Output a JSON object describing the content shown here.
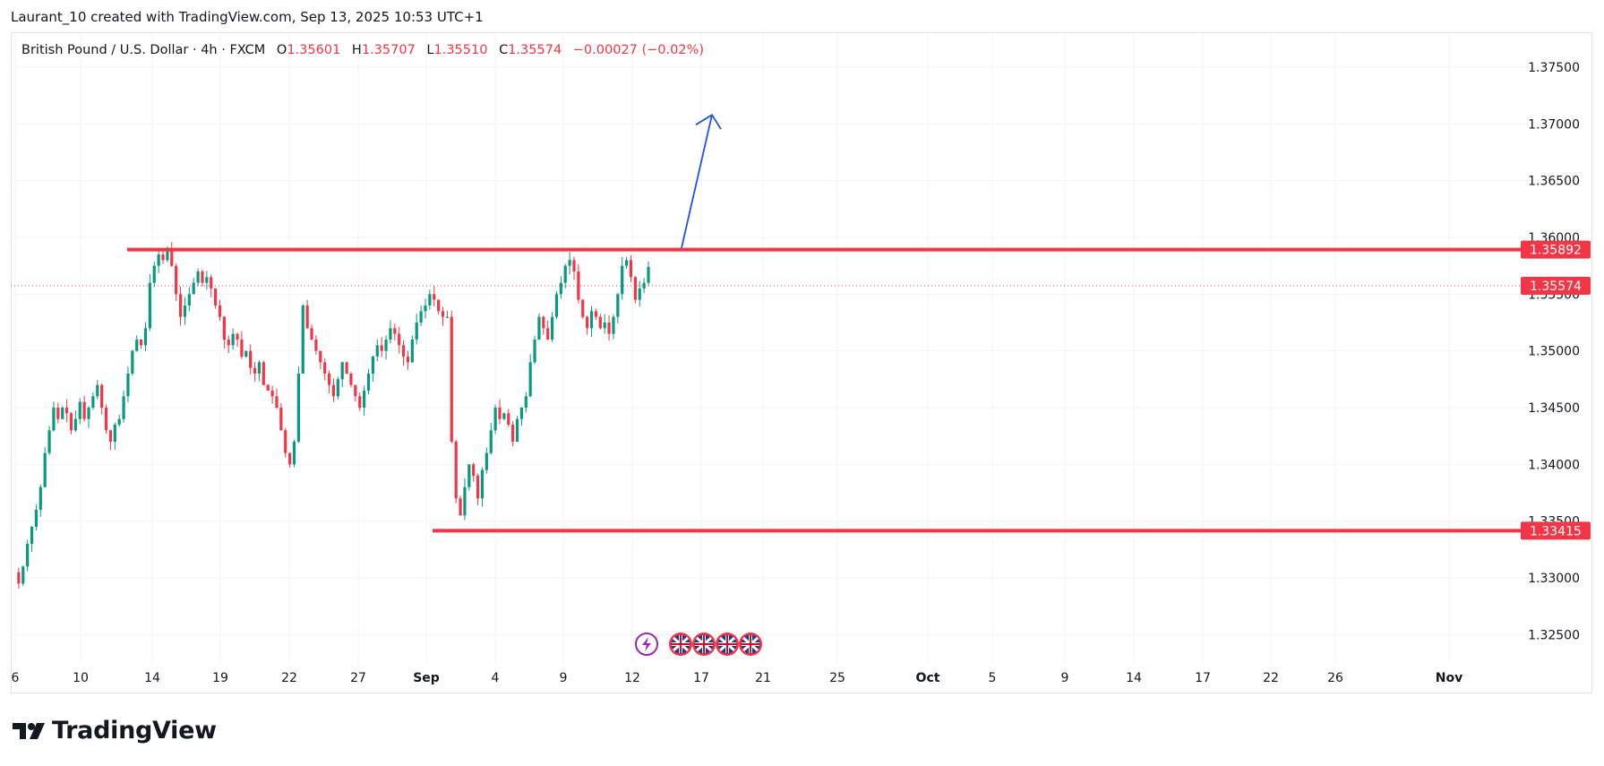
{
  "credit": "Laurant_10 created with TradingView.com, Sep 13, 2025 10:53 UTC+1",
  "legend": {
    "symbol": "British Pound / U.S. Dollar · 4h · FXCM",
    "open_label": "O",
    "open": "1.35601",
    "high_label": "H",
    "high": "1.35707",
    "low_label": "L",
    "low": "1.35510",
    "close_label": "C",
    "close": "1.35574",
    "change": "−0.00027 (−0.02%)"
  },
  "brand": "TradingView",
  "colors": {
    "up": "#089981",
    "down": "#f23645",
    "level": "#f23645",
    "arrow": "#1e53e5",
    "grid": "#f0f3fa",
    "event": "#9c27b0"
  },
  "icons": [
    "tradingview-logo-icon",
    "lightning-event-icon",
    "uk-flag-icon"
  ],
  "chart_data": {
    "type": "candlestick",
    "ylim": [
      1.3225,
      1.378
    ],
    "y_ticks": [
      "1.37500",
      "1.37000",
      "1.36500",
      "1.36000",
      "1.35500",
      "1.35000",
      "1.34500",
      "1.34000",
      "1.33500",
      "1.33000",
      "1.32500"
    ],
    "y_tick_values": [
      1.375,
      1.37,
      1.365,
      1.36,
      1.355,
      1.35,
      1.345,
      1.34,
      1.335,
      1.33,
      1.325
    ],
    "x_ticks": [
      {
        "label": "6",
        "bold": false
      },
      {
        "label": "10",
        "bold": false
      },
      {
        "label": "14",
        "bold": false
      },
      {
        "label": "19",
        "bold": false
      },
      {
        "label": "22",
        "bold": false
      },
      {
        "label": "27",
        "bold": false
      },
      {
        "label": "Sep",
        "bold": true
      },
      {
        "label": "4",
        "bold": false
      },
      {
        "label": "9",
        "bold": false
      },
      {
        "label": "12",
        "bold": false
      },
      {
        "label": "17",
        "bold": false
      },
      {
        "label": "21",
        "bold": false
      },
      {
        "label": "25",
        "bold": false
      },
      {
        "label": "Oct",
        "bold": true
      },
      {
        "label": "5",
        "bold": false
      },
      {
        "label": "9",
        "bold": false
      },
      {
        "label": "14",
        "bold": false
      },
      {
        "label": "17",
        "bold": false
      },
      {
        "label": "22",
        "bold": false
      },
      {
        "label": "26",
        "bold": false
      },
      {
        "label": "Nov",
        "bold": true
      }
    ],
    "price_path": [
      1.3305,
      1.3295,
      1.331,
      1.333,
      1.3345,
      1.336,
      1.338,
      1.341,
      1.343,
      1.345,
      1.344,
      1.345,
      1.3445,
      1.343,
      1.344,
      1.3455,
      1.344,
      1.345,
      1.346,
      1.347,
      1.345,
      1.343,
      1.342,
      1.3435,
      1.344,
      1.346,
      1.348,
      1.35,
      1.351,
      1.3505,
      1.352,
      1.356,
      1.3575,
      1.3585,
      1.358,
      1.359,
      1.3575,
      1.355,
      1.353,
      1.354,
      1.355,
      1.356,
      1.357,
      1.356,
      1.3565,
      1.3555,
      1.354,
      1.353,
      1.351,
      1.3505,
      1.3515,
      1.351,
      1.3495,
      1.35,
      1.3485,
      1.348,
      1.349,
      1.347,
      1.3465,
      1.346,
      1.345,
      1.343,
      1.341,
      1.34,
      1.342,
      1.348,
      1.354,
      1.352,
      1.351,
      1.35,
      1.349,
      1.348,
      1.347,
      1.346,
      1.3475,
      1.349,
      1.348,
      1.347,
      1.346,
      1.345,
      1.3465,
      1.348,
      1.3495,
      1.3505,
      1.35,
      1.351,
      1.352,
      1.3515,
      1.3505,
      1.3495,
      1.349,
      1.351,
      1.3525,
      1.3535,
      1.354,
      1.355,
      1.3545,
      1.3535,
      1.353,
      1.353,
      1.342,
      1.337,
      1.3355,
      1.338,
      1.34,
      1.339,
      1.337,
      1.3395,
      1.341,
      1.343,
      1.345,
      1.344,
      1.3445,
      1.3435,
      1.342,
      1.344,
      1.345,
      1.346,
      1.349,
      1.351,
      1.353,
      1.352,
      1.351,
      1.353,
      1.355,
      1.356,
      1.3575,
      1.358,
      1.357,
      1.3545,
      1.353,
      1.352,
      1.3535,
      1.353,
      1.352,
      1.3525,
      1.3515,
      1.353,
      1.355,
      1.3575,
      1.358,
      1.3565,
      1.3545,
      1.3555,
      1.356,
      1.3574
    ],
    "resistance": {
      "value": "1.35892",
      "price": 1.35892
    },
    "support": {
      "value": "1.33415",
      "price": 1.33415
    },
    "last_price": {
      "value": "1.35574",
      "price": 1.35574
    }
  }
}
